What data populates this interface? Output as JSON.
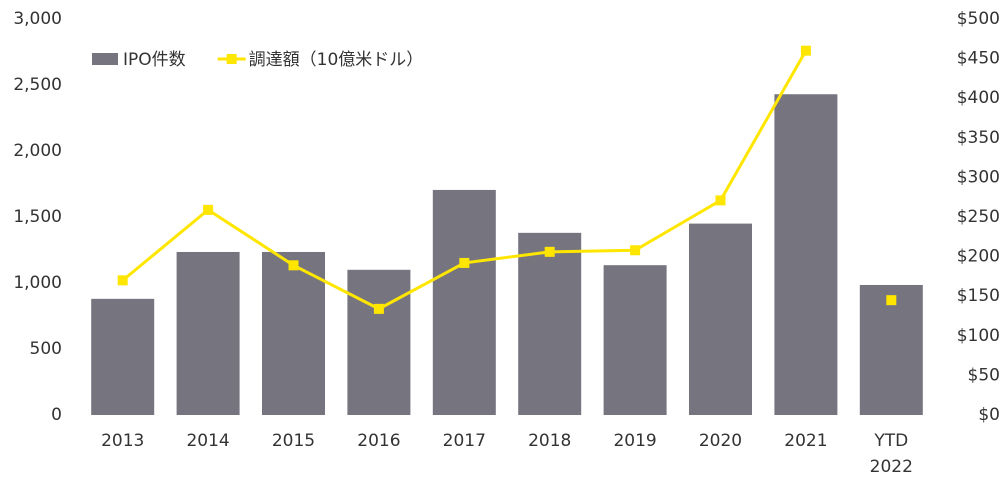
{
  "chart_data": {
    "type": "bar_line",
    "categories": [
      "2013",
      "2014",
      "2015",
      "2016",
      "2017",
      "2018",
      "2019",
      "2020",
      "2021",
      "YTD 2022"
    ],
    "series": [
      {
        "name": "IPO件数",
        "type": "bar",
        "color": "#76757f",
        "values": [
          880,
          1235,
          1235,
          1100,
          1705,
          1380,
          1135,
          1450,
          2430,
          985
        ]
      },
      {
        "name": "調達額（10億米ドル）",
        "type": "line",
        "axis": "y2",
        "color": "#ffe600",
        "values": [
          170,
          259,
          189,
          134,
          192,
          206,
          208,
          271,
          460,
          145
        ],
        "gap_before_index": 9
      }
    ],
    "ylim": [
      0,
      3000
    ],
    "yticks": [
      0,
      500,
      {
        "value": 1000,
        "label": "1,000"
      },
      {
        "value": 1500,
        "label": "1,500"
      },
      {
        "value": 2000,
        "label": "2,000"
      },
      {
        "value": 2500,
        "label": "2,500"
      },
      {
        "value": 3000,
        "label": "3,000"
      }
    ],
    "y2lim": [
      0,
      500
    ],
    "y2ticks": [
      {
        "value": 0,
        "label": "$0"
      },
      {
        "value": 50,
        "label": "$50"
      },
      {
        "value": 100,
        "label": "$100"
      },
      {
        "value": 150,
        "label": "$150"
      },
      {
        "value": 200,
        "label": "$200"
      },
      {
        "value": 250,
        "label": "$250"
      },
      {
        "value": 300,
        "label": "$300"
      },
      {
        "value": 350,
        "label": "$350"
      },
      {
        "value": 400,
        "label": "$400"
      },
      {
        "value": 450,
        "label": "$450"
      },
      {
        "value": 500,
        "label": "$500"
      }
    ],
    "grid": false,
    "legend": "top-left"
  }
}
